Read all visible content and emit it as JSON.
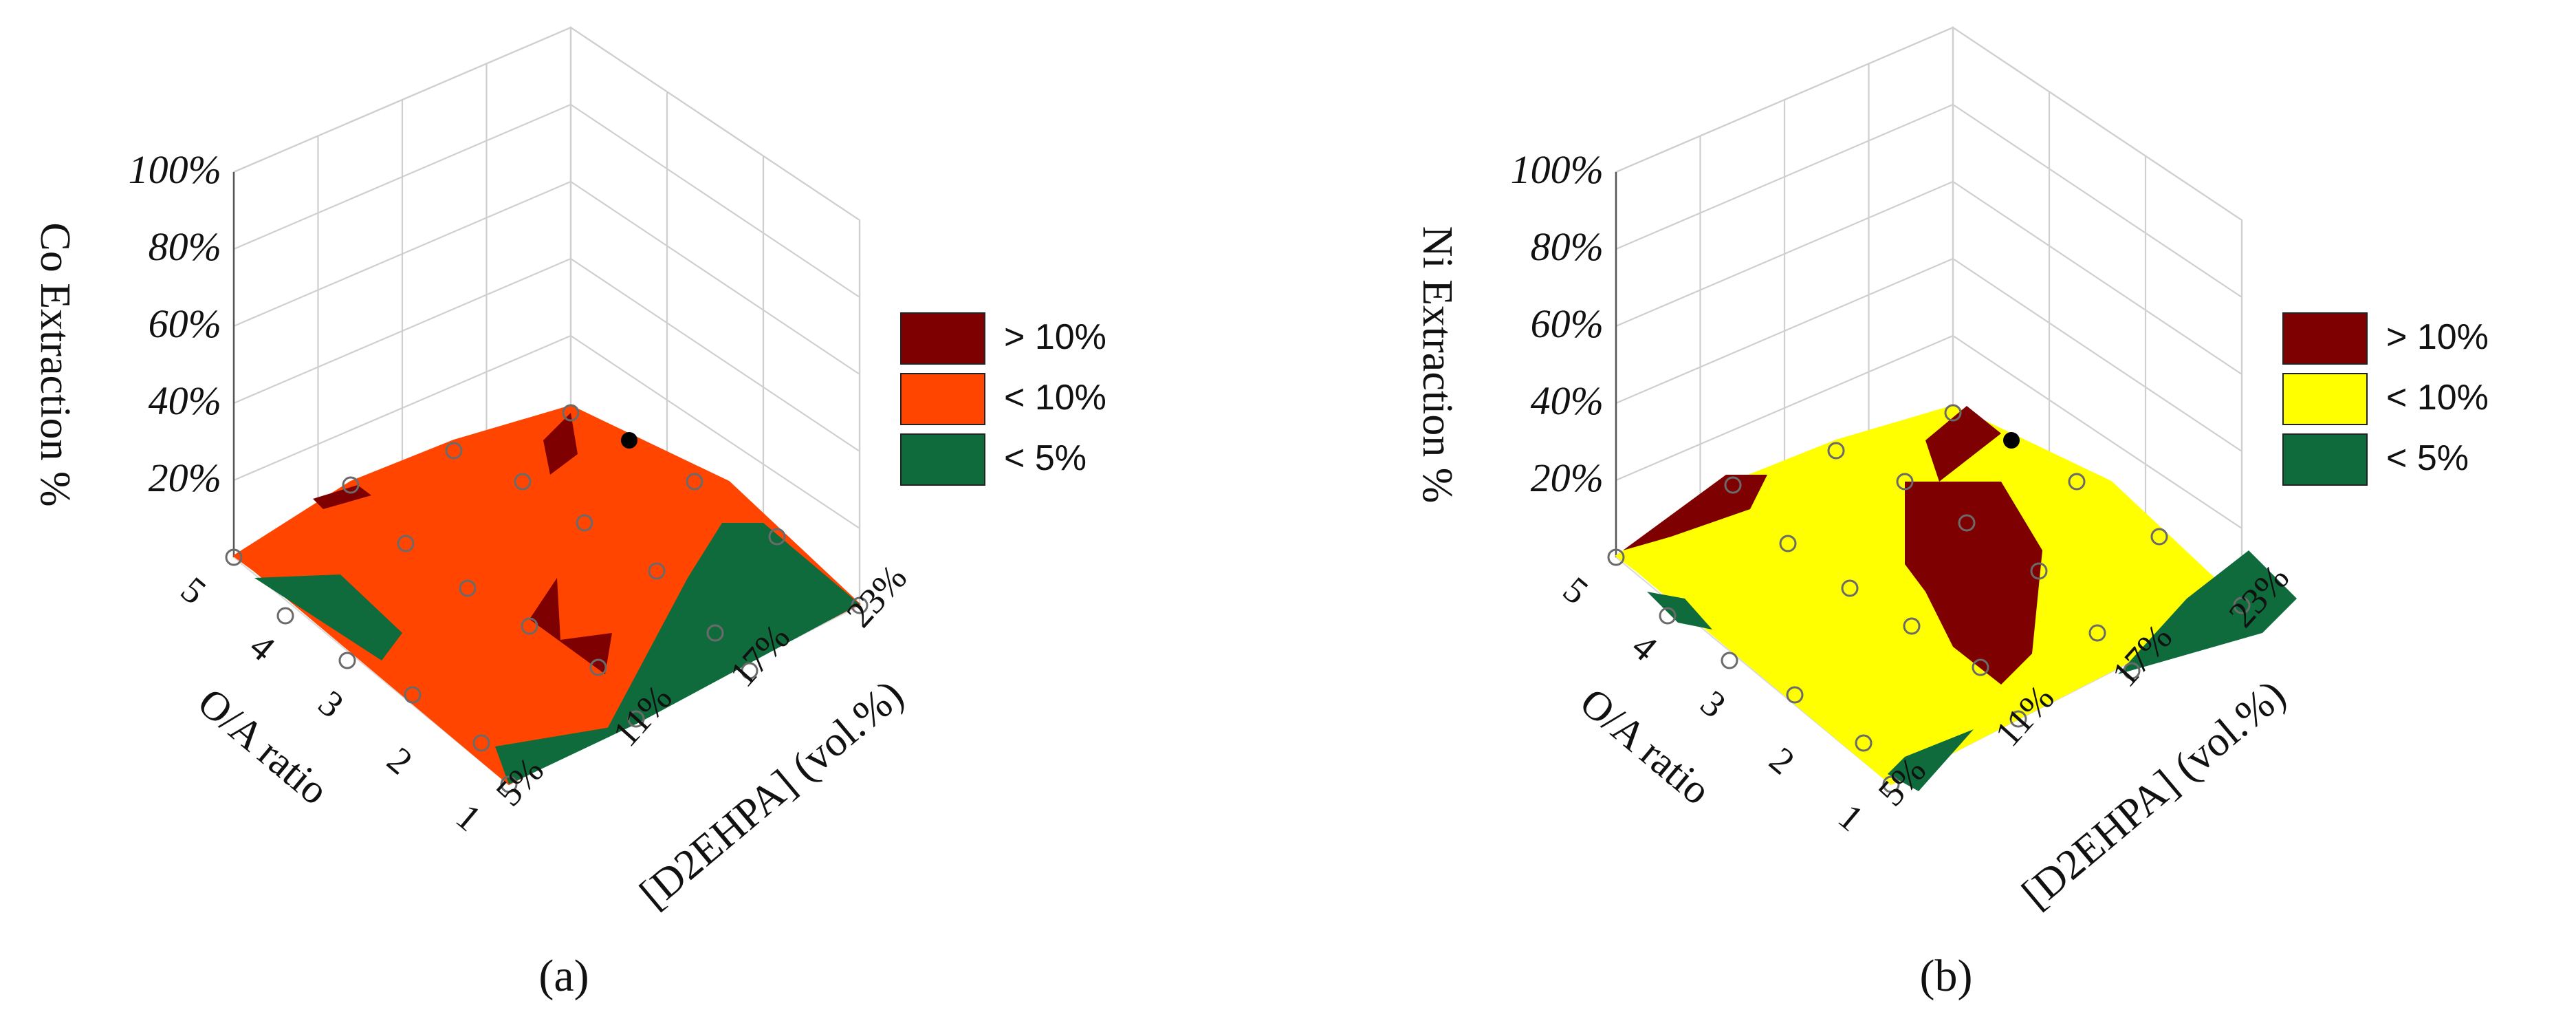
{
  "chart_data": [
    {
      "panel_label": "(a)",
      "type": "surface3d",
      "zlabel": "Co Extraction %",
      "xlabel": "O/A ratio",
      "ylabel": "[D2EHPA] (vol.%)",
      "x_ticks": [
        "5",
        "4",
        "3",
        "2",
        "1"
      ],
      "y_ticks": [
        "23%",
        "17%",
        "11%",
        "5%"
      ],
      "z_ticks": [
        "20%",
        "40%",
        "60%",
        "80%",
        "100%"
      ],
      "zlim": [
        0,
        100
      ],
      "legend": [
        {
          "label": "> 10%",
          "color": "#7f0000"
        },
        {
          "label": "< 10%",
          "color": "#ff4500"
        },
        {
          "label": "< 5%",
          "color": "#0f6b3b"
        }
      ],
      "surface_color": "#ff4500",
      "regions": [
        {
          "class": "< 5%",
          "description": "low O/A, high D2EHPA corner"
        },
        {
          "class": "< 5%",
          "description": "5% D2EHPA, O/A 1"
        },
        {
          "class": "< 5%",
          "description": "O/A 4, 5% D2EHPA edge"
        },
        {
          "class": "> 10%",
          "description": "small patches near O/A 2-3, 11% D2EHPA and at high O/A"
        }
      ],
      "highlight_point_label": "max"
    },
    {
      "panel_label": "(b)",
      "type": "surface3d",
      "zlabel": "Ni Extraction %",
      "xlabel": "O/A ratio",
      "ylabel": "[D2EHPA] (vol.%)",
      "x_ticks": [
        "5",
        "4",
        "3",
        "2",
        "1"
      ],
      "y_ticks": [
        "23%",
        "17%",
        "11%",
        "5%"
      ],
      "z_ticks": [
        "20%",
        "40%",
        "60%",
        "80%",
        "100%"
      ],
      "zlim": [
        0,
        100
      ],
      "legend": [
        {
          "label": "> 10%",
          "color": "#7f0000"
        },
        {
          "label": "< 10%",
          "color": "#ffff00"
        },
        {
          "label": "< 5%",
          "color": "#0f6b3b"
        }
      ],
      "surface_color": "#ffff00",
      "regions": [
        {
          "class": "> 10%",
          "description": "central band around 11-17% D2EHPA"
        },
        {
          "class": "> 10%",
          "description": "corner at high O/A"
        },
        {
          "class": "< 5%",
          "description": "low O/A, high D2EHPA corner"
        }
      ],
      "highlight_point_label": "max"
    }
  ]
}
